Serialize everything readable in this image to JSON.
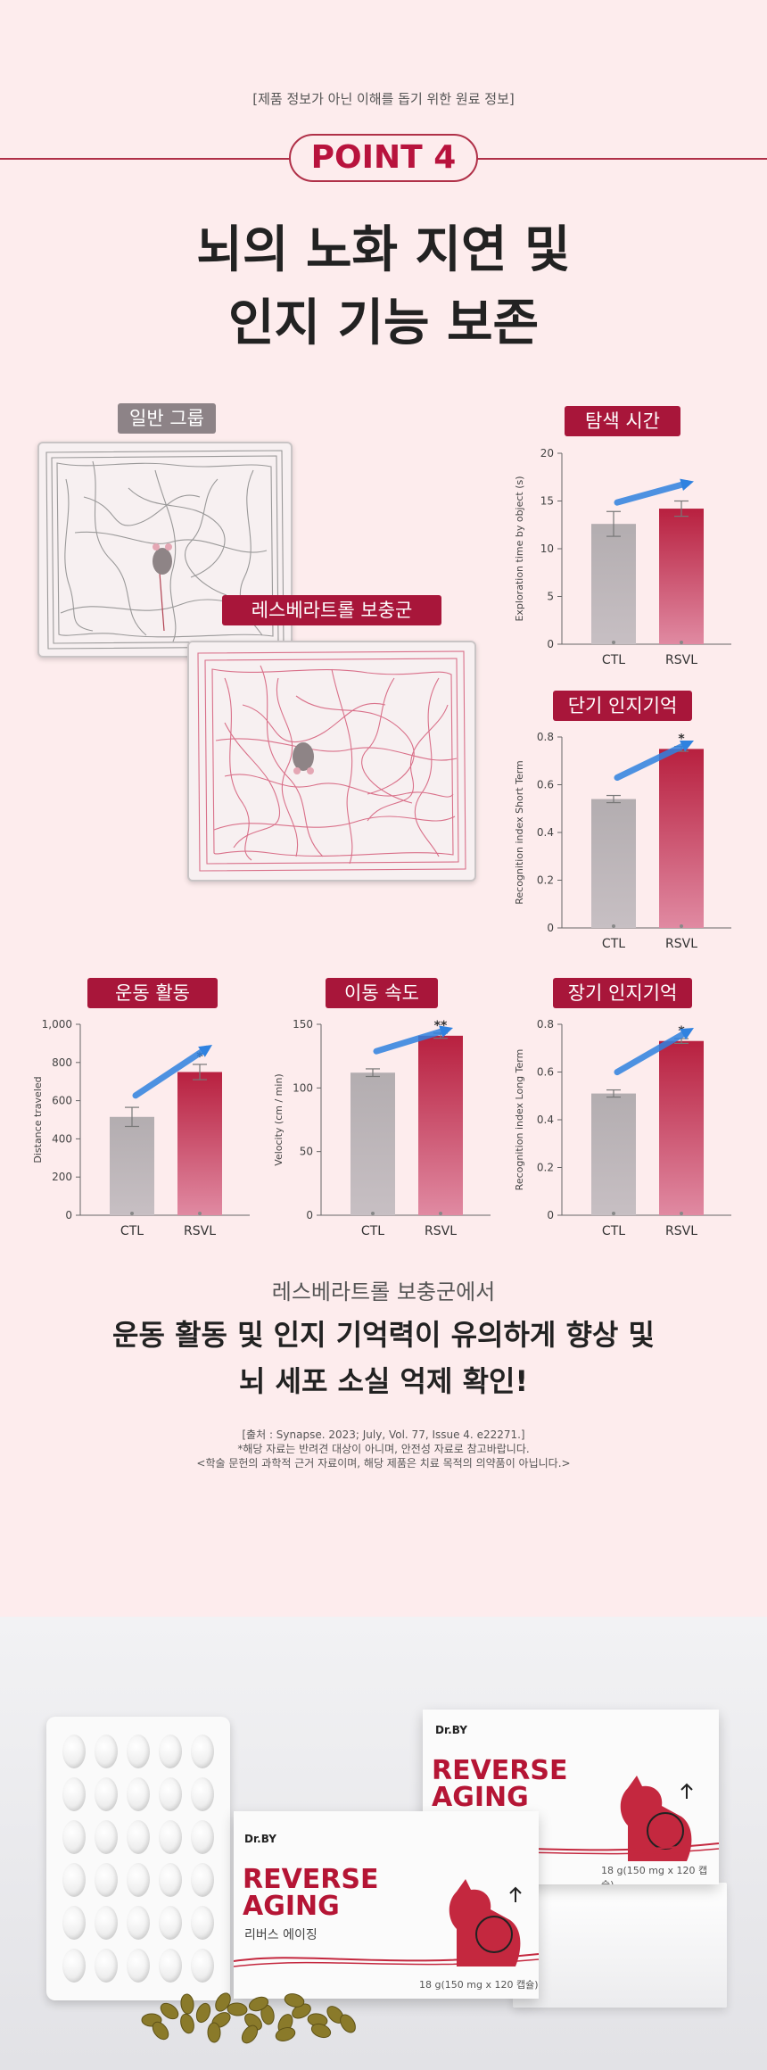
{
  "header": {
    "note": "[제품 정보가 아닌 이해를 돕기 위한 원료 정보]",
    "point": "POINT 4",
    "headline_line1": "뇌의 노화 지연 및",
    "headline_line2": "인지 기능 보존"
  },
  "maze": {
    "normal_label": "일반 그룹",
    "supplement_label": "레스베라트롤 보충군"
  },
  "colors": {
    "accent": "#a8163a",
    "ctl_bar": "#b3adb0",
    "rsvl_bar": "#b8203f",
    "arrow": "#2f82e0"
  },
  "chart_data": [
    {
      "type": "bar",
      "title": "탐색 시간",
      "ylabel": "Exploration time by object (s)",
      "categories": [
        "CTL",
        "RSVL"
      ],
      "values": [
        12.6,
        14.2
      ],
      "errors": [
        1.3,
        0.8
      ],
      "significance": [
        "",
        ""
      ],
      "ylim": [
        0,
        20
      ],
      "yticks": [
        "0",
        "5",
        "10",
        "15",
        "20"
      ],
      "grid": false
    },
    {
      "type": "bar",
      "title": "단기 인지기억",
      "ylabel": "Recognition index Short Term",
      "categories": [
        "CTL",
        "RSVL"
      ],
      "values": [
        0.54,
        0.75
      ],
      "errors": [
        0.015,
        0.01
      ],
      "significance": [
        "",
        "*"
      ],
      "ylim": [
        0,
        0.8
      ],
      "yticks": [
        "0",
        "0.2",
        "0.4",
        "0.6",
        "0.8"
      ],
      "grid": false
    },
    {
      "type": "bar",
      "title": "운동 활동",
      "ylabel": "Distance traveled",
      "categories": [
        "CTL",
        "RSVL"
      ],
      "values": [
        515,
        750
      ],
      "errors": [
        50,
        40
      ],
      "significance": [
        "",
        "*"
      ],
      "ylim": [
        0,
        1000
      ],
      "yticks": [
        "0",
        "200",
        "400",
        "600",
        "800",
        "1,000"
      ],
      "grid": false
    },
    {
      "type": "bar",
      "title": "이동 속도",
      "ylabel": "Velocity (cm / min)",
      "categories": [
        "CTL",
        "RSVL"
      ],
      "values": [
        112,
        141
      ],
      "errors": [
        3,
        2
      ],
      "significance": [
        "",
        "**"
      ],
      "ylim": [
        0,
        150
      ],
      "yticks": [
        "0",
        "50",
        "100",
        "150"
      ],
      "grid": false
    },
    {
      "type": "bar",
      "title": "장기 인지기억",
      "ylabel": "Recognition index Long Term",
      "categories": [
        "CTL",
        "RSVL"
      ],
      "values": [
        0.51,
        0.73
      ],
      "errors": [
        0.015,
        0.01
      ],
      "significance": [
        "",
        "*"
      ],
      "ylim": [
        0,
        0.8
      ],
      "yticks": [
        "0",
        "0.2",
        "0.4",
        "0.6",
        "0.8"
      ],
      "grid": false
    }
  ],
  "summary": {
    "sub": "레스베라트롤 보충군에서",
    "main_line1": "운동 활동 및 인지 기억력이 유의하게 향상 및",
    "main_line2": "뇌 세포 소실 억제 확인!"
  },
  "source": {
    "line1": "[출처 : Synapse. 2023; July, Vol. 77, Issue 4. e22271.]",
    "line2": "*해당 자료는 반려견 대상이 아니며, 안전성 자료로 참고바랍니다.",
    "line3": "<학술 문헌의 과학적 근거 자료이며, 해당 제품은 치료 목적의 의약품이 아닙니다.>"
  },
  "product": {
    "brand": "Dr.BY",
    "title_line1": "REVERSE",
    "title_line2": "AGING",
    "korean_name": "리버스 에이징",
    "weight": "18 g(150 mg x 120 캡슐)"
  }
}
